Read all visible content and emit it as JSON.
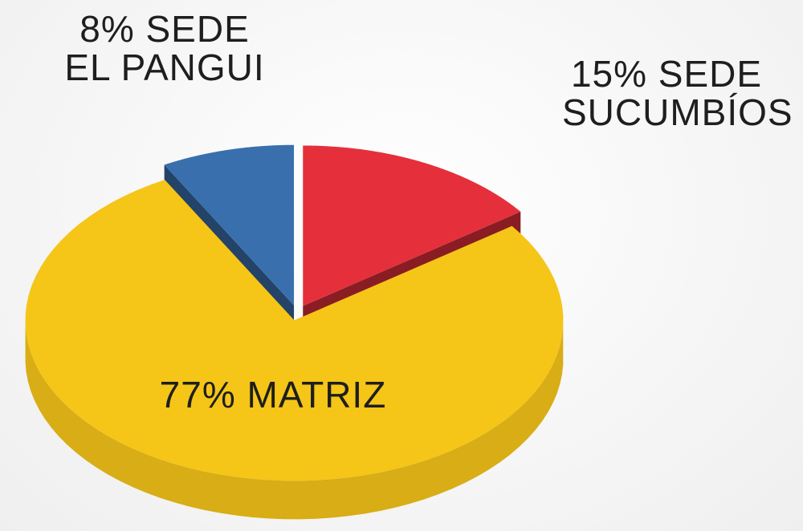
{
  "chart_data": {
    "type": "pie",
    "categories": [
      "SEDE SUCUMBÍOS",
      "MATRIZ",
      "SEDE EL PANGUI"
    ],
    "values": [
      15,
      77,
      8
    ],
    "value_labels": [
      "15%",
      "77%",
      "8%"
    ],
    "colors": [
      "#e5303b",
      "#f5c518",
      "#3a6fae"
    ]
  }
}
